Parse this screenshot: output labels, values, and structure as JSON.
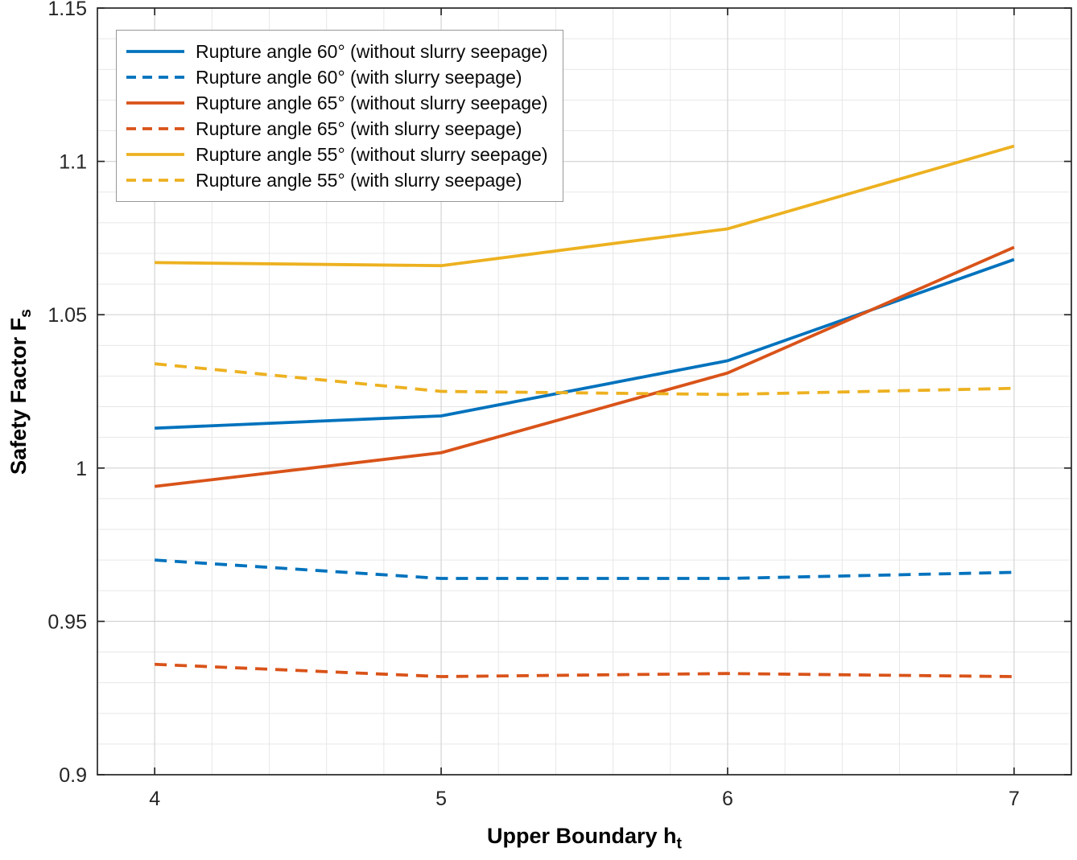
{
  "chart_data": {
    "type": "line",
    "title": "",
    "xlabel_base": "Upper Boundary h",
    "xlabel_sub": "t",
    "ylabel_base": "Safety Factor F",
    "ylabel_sub": "s",
    "x": [
      4,
      5,
      6,
      7
    ],
    "xlim": [
      3.8,
      7.2
    ],
    "ylim": [
      0.9,
      1.15
    ],
    "xticks": [
      4,
      5,
      6,
      7
    ],
    "xtick_labels": [
      "4",
      "5",
      "6",
      "7"
    ],
    "yticks": [
      0.9,
      0.95,
      1.0,
      1.05,
      1.1,
      1.15
    ],
    "ytick_labels": [
      "0.9",
      "0.95",
      "1",
      "1.05",
      "1.1",
      "1.15"
    ],
    "x_minor_step": 0.2,
    "y_minor_step": 0.01,
    "grid": true,
    "minor_grid": true,
    "legend_position": "top-left",
    "series": [
      {
        "name": "Rupture angle 60° (without slurry seepage)",
        "color": "#0072BD",
        "style": "solid",
        "values": [
          1.013,
          1.017,
          1.035,
          1.068
        ]
      },
      {
        "name": "Rupture angle 60° (with slurry seepage)",
        "color": "#0072BD",
        "style": "dashed",
        "values": [
          0.97,
          0.964,
          0.964,
          0.966
        ]
      },
      {
        "name": "Rupture angle 65° (without slurry seepage)",
        "color": "#D95319",
        "style": "solid",
        "values": [
          0.994,
          1.005,
          1.031,
          1.072
        ]
      },
      {
        "name": "Rupture angle 65° (with slurry seepage)",
        "color": "#D95319",
        "style": "dashed",
        "values": [
          0.936,
          0.932,
          0.933,
          0.932
        ]
      },
      {
        "name": "Rupture angle 55° (without slurry seepage)",
        "color": "#EDB120",
        "style": "solid",
        "values": [
          1.067,
          1.066,
          1.078,
          1.105
        ]
      },
      {
        "name": "Rupture angle 55° (with slurry seepage)",
        "color": "#EDB120",
        "style": "dashed",
        "values": [
          1.034,
          1.025,
          1.024,
          1.026
        ]
      }
    ],
    "colors": {
      "blue": "#0072BD",
      "red": "#D95319",
      "yellow": "#EDB120"
    },
    "axis_color": "#262626",
    "grid_color": "#d4d4d4",
    "minor_grid_color": "#e7e7e7",
    "background": "#ffffff"
  }
}
